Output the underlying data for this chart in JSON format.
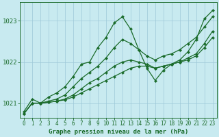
{
  "title": "Graphe pression niveau de la mer (hPa)",
  "bg_color": "#c8eaf0",
  "grid_color": "#9dc8d8",
  "line_color": "#1a6b2a",
  "xlim": [
    -0.5,
    23.5
  ],
  "ylim": [
    1020.65,
    1023.45
  ],
  "yticks": [
    1021,
    1022,
    1023
  ],
  "xticks": [
    0,
    1,
    2,
    3,
    4,
    5,
    6,
    7,
    8,
    9,
    10,
    11,
    12,
    13,
    14,
    15,
    16,
    17,
    18,
    19,
    20,
    21,
    22,
    23
  ],
  "series": [
    [
      1020.8,
      1021.1,
      1021.0,
      1021.15,
      1021.25,
      1021.4,
      1021.65,
      1021.95,
      1022.0,
      1022.35,
      1022.6,
      1022.95,
      1023.1,
      1022.8,
      1022.3,
      1021.85,
      1021.55,
      1021.8,
      1021.95,
      1022.05,
      1022.25,
      1022.55,
      1023.05,
      1023.25
    ],
    [
      1020.75,
      1021.0,
      1021.0,
      1021.05,
      1021.1,
      1021.2,
      1021.4,
      1021.6,
      1021.75,
      1021.9,
      1022.1,
      1022.35,
      1022.55,
      1022.45,
      1022.3,
      1022.15,
      1022.05,
      1022.15,
      1022.2,
      1022.3,
      1022.45,
      1022.6,
      1022.85,
      1023.1
    ],
    [
      1020.75,
      1021.0,
      1021.0,
      1021.02,
      1021.05,
      1021.1,
      1021.2,
      1021.35,
      1021.5,
      1021.6,
      1021.75,
      1021.9,
      1022.0,
      1022.05,
      1022.0,
      1021.95,
      1021.85,
      1021.9,
      1021.95,
      1022.0,
      1022.1,
      1022.2,
      1022.45,
      1022.75
    ],
    [
      1020.75,
      1021.0,
      1021.0,
      1021.02,
      1021.05,
      1021.08,
      1021.15,
      1021.25,
      1021.35,
      1021.45,
      1021.55,
      1021.65,
      1021.75,
      1021.85,
      1021.9,
      1021.9,
      1021.85,
      1021.9,
      1021.95,
      1022.0,
      1022.05,
      1022.15,
      1022.35,
      1022.6
    ]
  ]
}
